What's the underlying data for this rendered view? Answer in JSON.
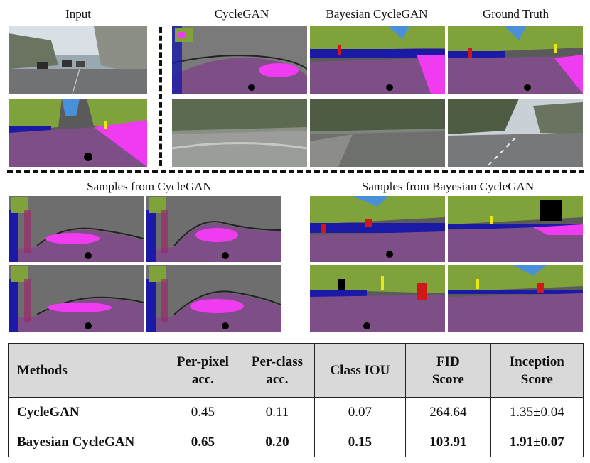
{
  "labels": {
    "input": "Input",
    "cyclegan": "CycleGAN",
    "bayesian_cyclegan": "Bayesian CycleGAN",
    "ground_truth": "Ground Truth",
    "samples_cyclegan": "Samples from CycleGAN",
    "samples_bayesian": "Samples from Bayesian CycleGAN"
  },
  "table": {
    "headers": [
      "Methods",
      "Per-pixel acc.",
      "Per-class acc.",
      "Class IOU",
      "FID Score",
      "Inception Score"
    ],
    "header_lines": [
      [
        "Methods"
      ],
      [
        "Per-pixel",
        "acc."
      ],
      [
        "Per-class",
        "acc."
      ],
      [
        "Class IOU"
      ],
      [
        "FID",
        "Score"
      ],
      [
        "Inception",
        "Score"
      ]
    ],
    "rows": [
      {
        "method": "CycleGAN",
        "per_pixel": "0.45",
        "per_class": "0.11",
        "class_iou": "0.07",
        "fid": "264.64",
        "inception": "1.35±0.04"
      },
      {
        "method": "Bayesian CycleGAN",
        "per_pixel": "0.65",
        "per_class": "0.20",
        "class_iou": "0.15",
        "fid": "103.91",
        "inception": "1.91±0.07"
      }
    ]
  },
  "colors": {
    "road": "#7e4f86",
    "sky": "#4a90d9",
    "vegetation": "#7fa33a",
    "building": "#5a5a5a",
    "sidewalk": "#f03cf0",
    "car": "#1a1aa6",
    "person": "#d01818",
    "sign": "#e8e818",
    "gray_bg": "#7a7a7a"
  }
}
